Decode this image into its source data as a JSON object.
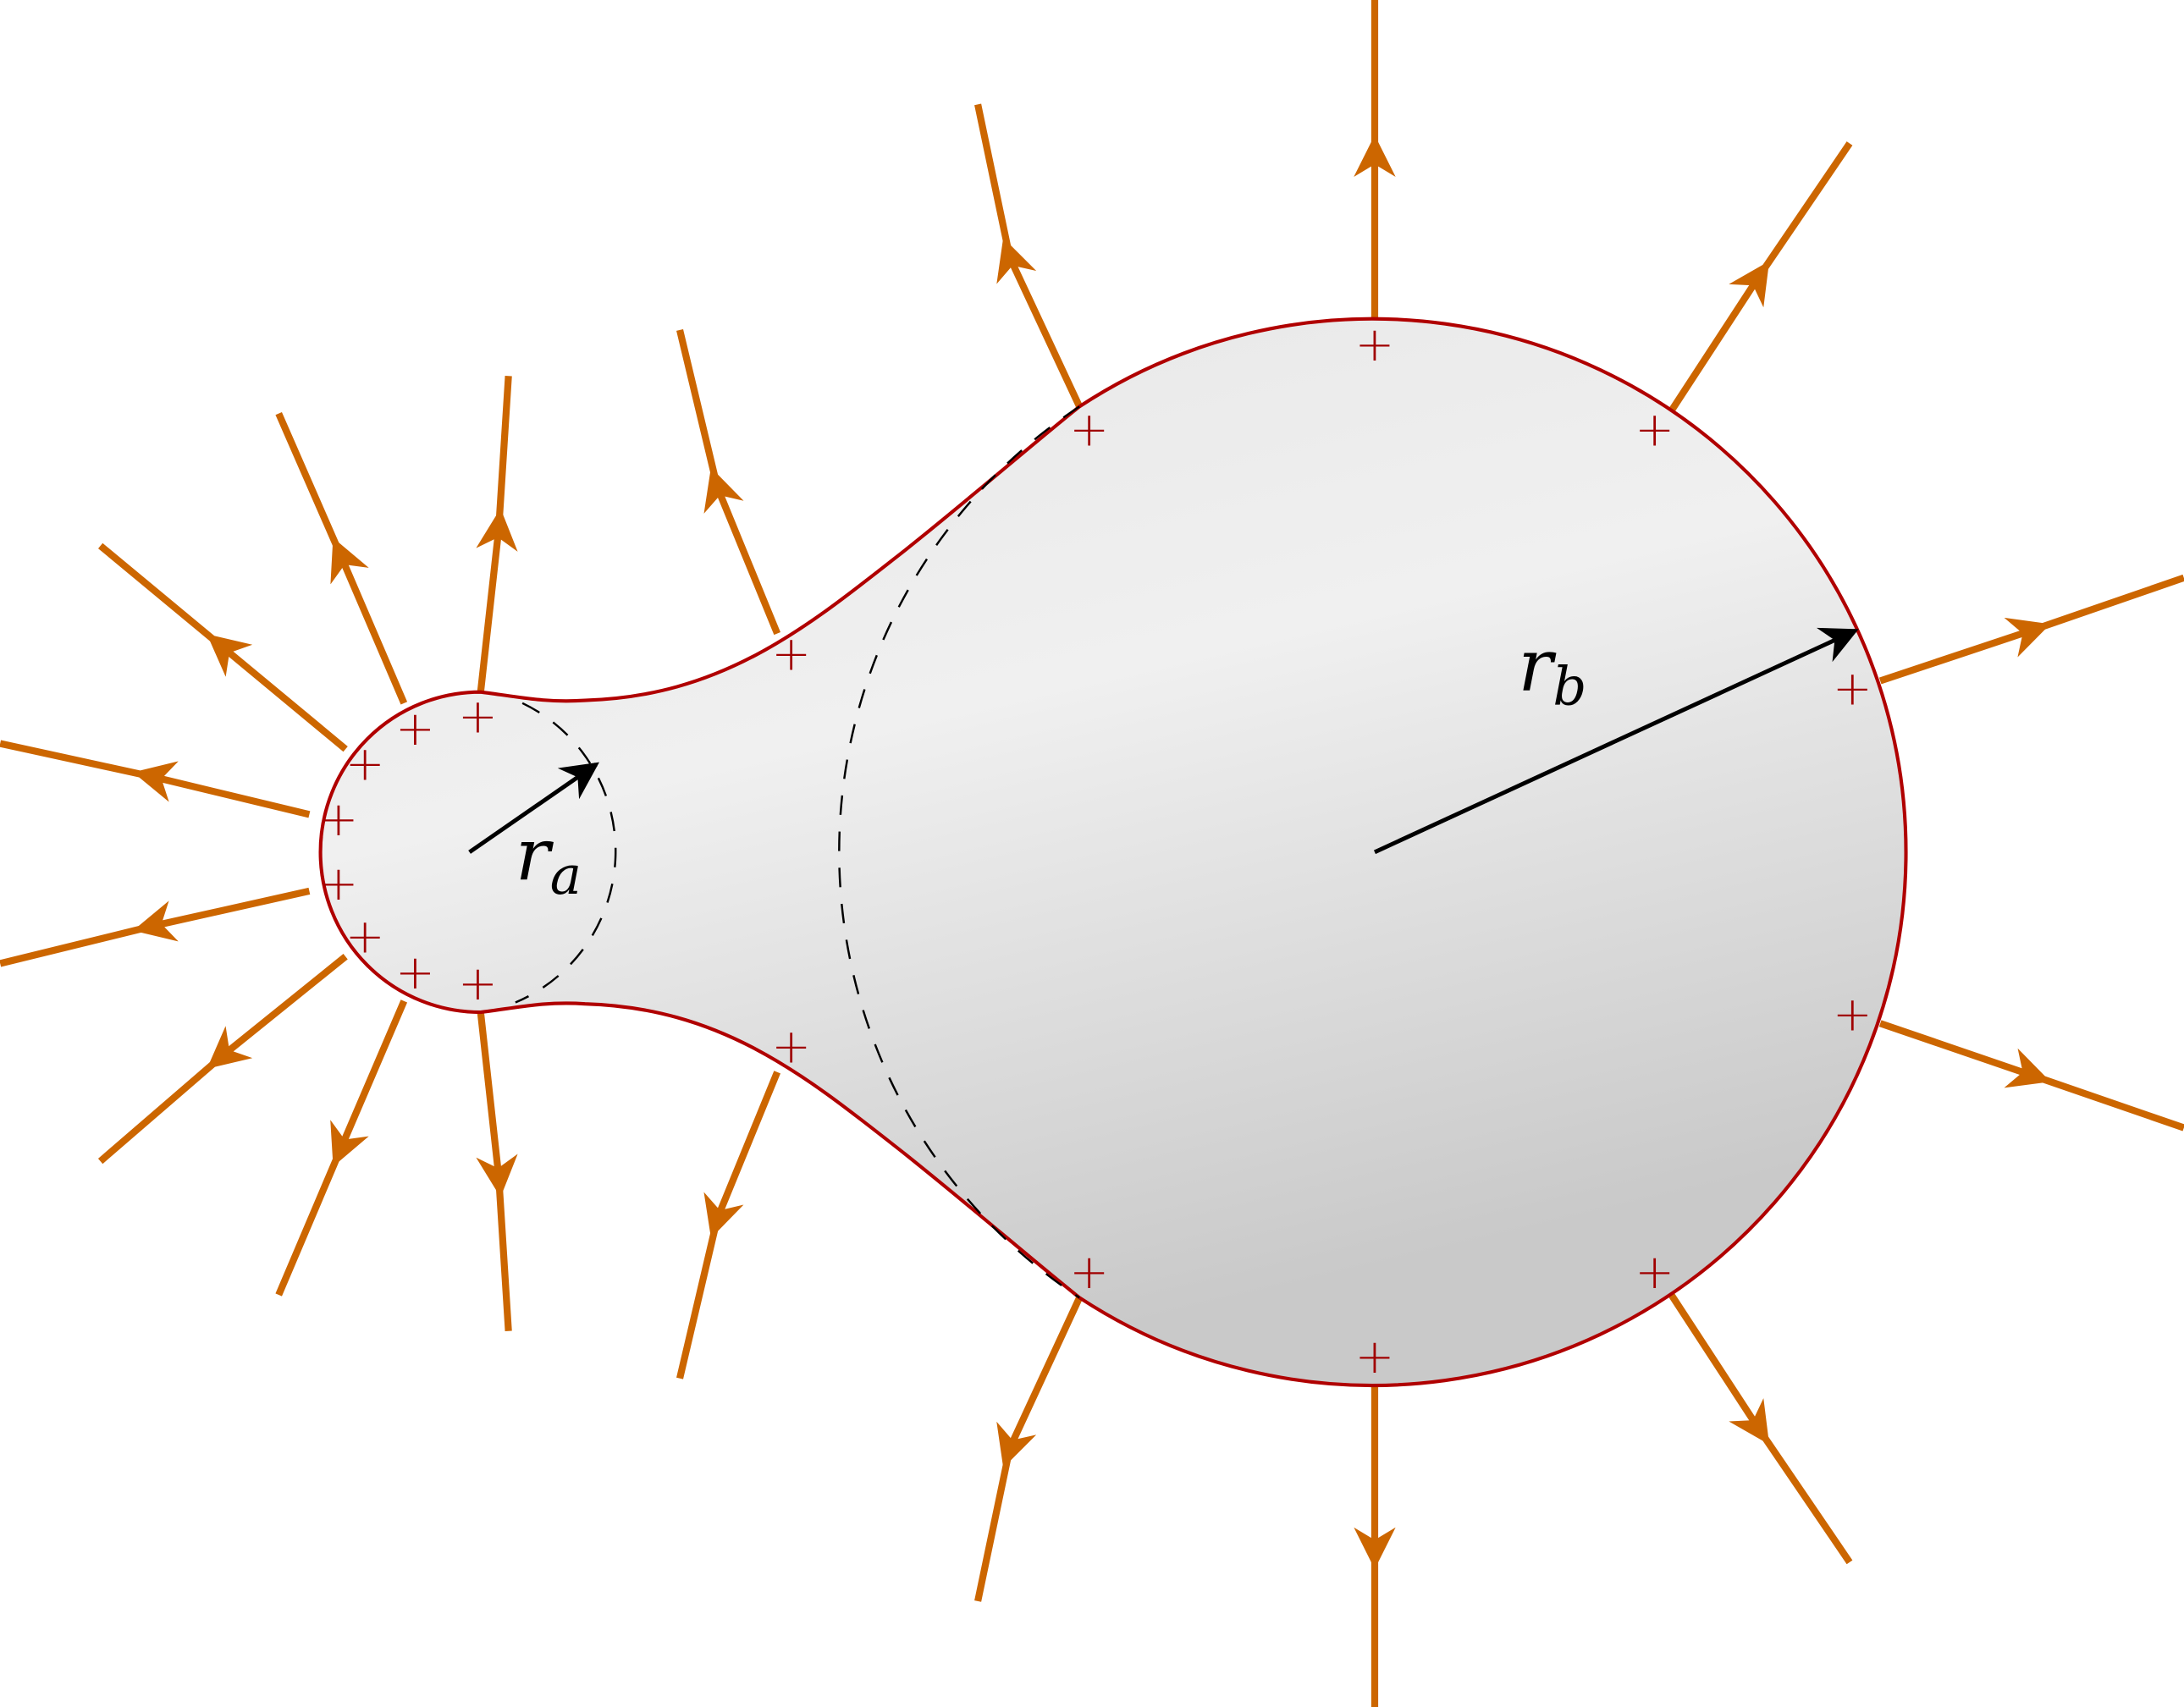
{
  "diagram": {
    "labels": {
      "small_radius": {
        "base": "r",
        "subscript": "a"
      },
      "large_radius": {
        "base": "r",
        "subscript": "b"
      }
    },
    "charge_symbol": "+",
    "colors": {
      "field_lines": "#cc6600",
      "conductor_outline": "#b00000",
      "charge_marks": "#a00000",
      "conductor_fill_light": "#f0f0f0",
      "conductor_fill_dark": "#cbcbcb",
      "radius_arrows": "#000000"
    }
  }
}
